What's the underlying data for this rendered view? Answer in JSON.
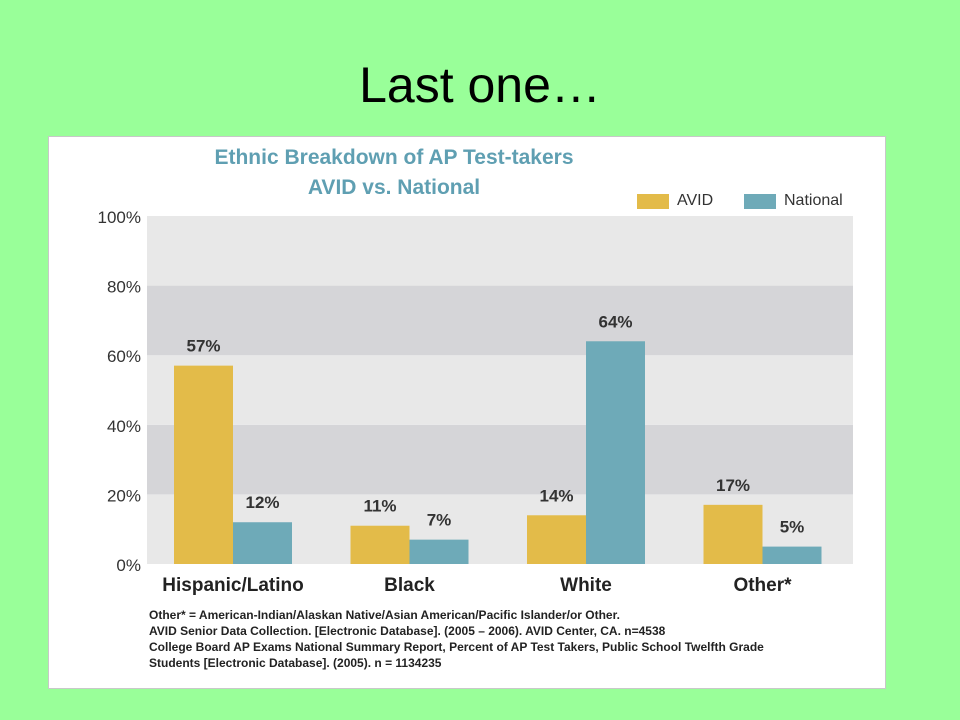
{
  "slide": {
    "title": "Last one…"
  },
  "chart_data": {
    "type": "bar",
    "title": "Ethnic Breakdown of AP Test-takers",
    "subtitle": "AVID vs. National",
    "categories": [
      "Hispanic/Latino",
      "Black",
      "White",
      "Other*"
    ],
    "series": [
      {
        "name": "AVID",
        "values": [
          57,
          11,
          14,
          17
        ],
        "labels": [
          "57%",
          "11%",
          "14%",
          "17%"
        ],
        "color": "#e3bb49"
      },
      {
        "name": "National",
        "values": [
          12,
          7,
          64,
          5
        ],
        "labels": [
          "12%",
          "7%",
          "64%",
          "5%"
        ],
        "color": "#6eaab8"
      }
    ],
    "yticks": [
      "0%",
      "20%",
      "40%",
      "60%",
      "80%",
      "100%"
    ],
    "ylim": [
      0,
      100
    ],
    "grid": "alternating bands",
    "legend_position": "top-right",
    "footnotes": [
      "Other* = American-Indian/Alaskan Native/Asian American/Pacific Islander/or Other.",
      "AVID Senior Data Collection.  [Electronic Database]. (2005 – 2006). AVID Center, CA. n=4538",
      "College Board AP Exams National Summary Report, Percent of AP Test Takers, Public School Twelfth Grade",
      "Students [Electronic Database]. (2005). n = 1134235"
    ]
  }
}
